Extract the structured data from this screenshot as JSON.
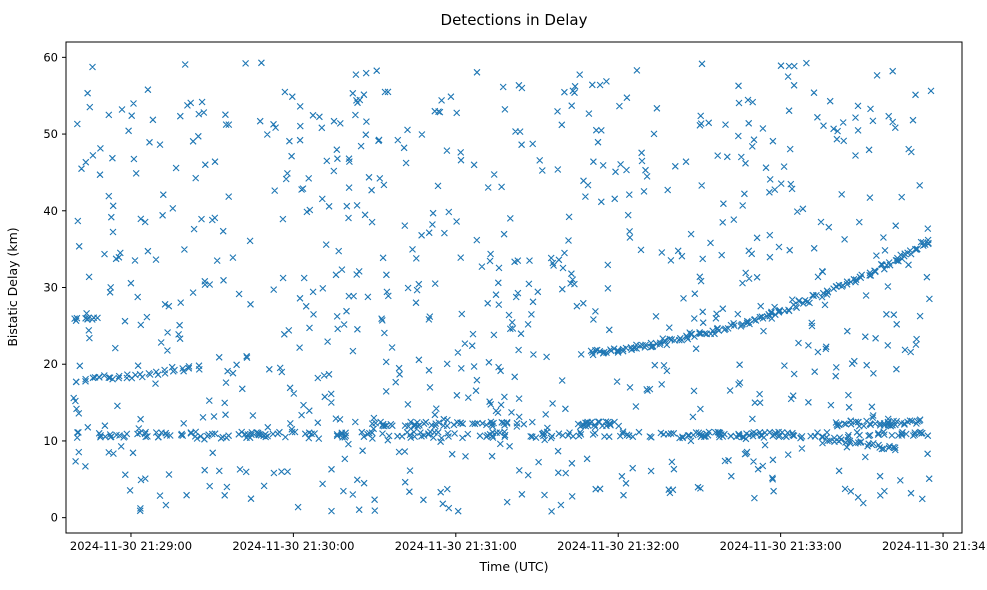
{
  "figure": {
    "background": "#ffffff"
  },
  "chart_data": {
    "type": "scatter",
    "title": "Detections in Delay",
    "xlabel": "Time (UTC)",
    "ylabel": "Bistatic Delay (km)",
    "marker": "x",
    "marker_color": "#1f77b4",
    "seed": 20241130,
    "grid": false,
    "legend": null,
    "x_axis": {
      "unit": "seconds after 2024-11-30 21:28:00 UTC",
      "range": [
        36,
        367
      ],
      "ticks": [
        {
          "value": 60,
          "label": "2024-11-30 21:29:00"
        },
        {
          "value": 120,
          "label": "2024-11-30 21:30:00"
        },
        {
          "value": 180,
          "label": "2024-11-30 21:31:00"
        },
        {
          "value": 240,
          "label": "2024-11-30 21:32:00"
        },
        {
          "value": 300,
          "label": "2024-11-30 21:33:00"
        },
        {
          "value": 360,
          "label": "2024-11-30 21:34:00"
        }
      ]
    },
    "y_axis": {
      "unit": "km",
      "range": [
        -2,
        62
      ],
      "ticks": [
        {
          "value": 0,
          "label": "0"
        },
        {
          "value": 10,
          "label": "10"
        },
        {
          "value": 20,
          "label": "20"
        },
        {
          "value": 30,
          "label": "30"
        },
        {
          "value": 40,
          "label": "40"
        },
        {
          "value": 50,
          "label": "50"
        },
        {
          "value": 60,
          "label": "60"
        }
      ]
    },
    "series": [
      {
        "name": "clutter-detections",
        "kind": "random",
        "count": 780,
        "x_range": [
          38,
          356
        ],
        "y_range": [
          0.7,
          59.6
        ]
      },
      {
        "name": "range-band-10-11km",
        "kind": "random",
        "count": 240,
        "x_range": [
          40,
          356
        ],
        "y_range": [
          10.3,
          11.2
        ]
      },
      {
        "name": "range-band-12km-a",
        "kind": "random",
        "count": 45,
        "x_range": [
          148,
          215
        ],
        "y_range": [
          11.9,
          12.5
        ]
      },
      {
        "name": "range-band-12km-b",
        "kind": "random",
        "count": 40,
        "x_range": [
          320,
          352
        ],
        "y_range": [
          11.9,
          12.7
        ]
      },
      {
        "name": "range-band-12km-c",
        "kind": "random",
        "count": 25,
        "x_range": [
          225,
          245
        ],
        "y_range": [
          11.8,
          12.5
        ]
      },
      {
        "name": "band-26km-left-edge",
        "kind": "random",
        "count": 10,
        "x_range": [
          38,
          50
        ],
        "y_range": [
          25.4,
          26.2
        ]
      },
      {
        "name": "early-rising-track",
        "kind": "points",
        "repeat": 2,
        "jitter": 0.3,
        "xjitter": 0.8,
        "points": [
          [
            40,
            17.7
          ],
          [
            43,
            17.85
          ],
          [
            46,
            18.0
          ],
          [
            49,
            18.1
          ],
          [
            52,
            18.15
          ],
          [
            55,
            18.25
          ],
          [
            58,
            18.35
          ],
          [
            61,
            18.45
          ],
          [
            64,
            18.55
          ],
          [
            67,
            18.7
          ],
          [
            70,
            18.85
          ],
          [
            73,
            19.0
          ],
          [
            76,
            19.15
          ],
          [
            79,
            19.3
          ],
          [
            82,
            19.45
          ],
          [
            85,
            19.6
          ]
        ]
      },
      {
        "name": "descending-track-9-10km",
        "kind": "points",
        "repeat": 2,
        "jitter": 0.25,
        "xjitter": 0.8,
        "points": [
          [
            318,
            10.25
          ],
          [
            320,
            10.15
          ],
          [
            322,
            10.05
          ],
          [
            324,
            9.95
          ],
          [
            326,
            9.85
          ],
          [
            328,
            9.75
          ],
          [
            330,
            9.65
          ],
          [
            332,
            9.55
          ],
          [
            334,
            9.45
          ],
          [
            336,
            9.3
          ],
          [
            338,
            9.2
          ],
          [
            340,
            9.1
          ],
          [
            342,
            9.0
          ]
        ]
      },
      {
        "name": "target-track",
        "kind": "points",
        "repeat": 3,
        "jitter": 0.35,
        "xjitter": 1.0,
        "points": [
          [
            230,
            21.5
          ],
          [
            232.5,
            21.58
          ],
          [
            235,
            21.67
          ],
          [
            237.5,
            21.76
          ],
          [
            240,
            21.87
          ],
          [
            242.5,
            21.98
          ],
          [
            245,
            22.11
          ],
          [
            247.5,
            22.24
          ],
          [
            250,
            22.38
          ],
          [
            252.5,
            22.52
          ],
          [
            255,
            22.68
          ],
          [
            257.5,
            22.85
          ],
          [
            260,
            23.02
          ],
          [
            262.5,
            23.2
          ],
          [
            265,
            23.4
          ],
          [
            267.5,
            23.6
          ],
          [
            270,
            23.8
          ],
          [
            272.5,
            24.02
          ],
          [
            275,
            24.25
          ],
          [
            277.5,
            24.48
          ],
          [
            280,
            24.73
          ],
          [
            282.5,
            24.98
          ],
          [
            285,
            25.24
          ],
          [
            287.5,
            25.51
          ],
          [
            290,
            25.78
          ],
          [
            292.5,
            26.07
          ],
          [
            295,
            26.37
          ],
          [
            297.5,
            26.67
          ],
          [
            300,
            26.98
          ],
          [
            302.5,
            27.3
          ],
          [
            305,
            27.63
          ],
          [
            307.5,
            27.97
          ],
          [
            310,
            28.32
          ],
          [
            312.5,
            28.67
          ],
          [
            315,
            29.04
          ],
          [
            317.5,
            29.41
          ],
          [
            320,
            29.79
          ],
          [
            322.5,
            30.18
          ],
          [
            325,
            30.58
          ],
          [
            327.5,
            30.98
          ],
          [
            330,
            31.4
          ],
          [
            332.5,
            31.82
          ],
          [
            335,
            32.26
          ],
          [
            337.5,
            32.7
          ],
          [
            340,
            33.15
          ],
          [
            342.5,
            33.61
          ],
          [
            345,
            34.08
          ],
          [
            347.5,
            34.55
          ],
          [
            350,
            35.04
          ],
          [
            352.5,
            35.53
          ],
          [
            355,
            36.03
          ]
        ]
      }
    ]
  }
}
